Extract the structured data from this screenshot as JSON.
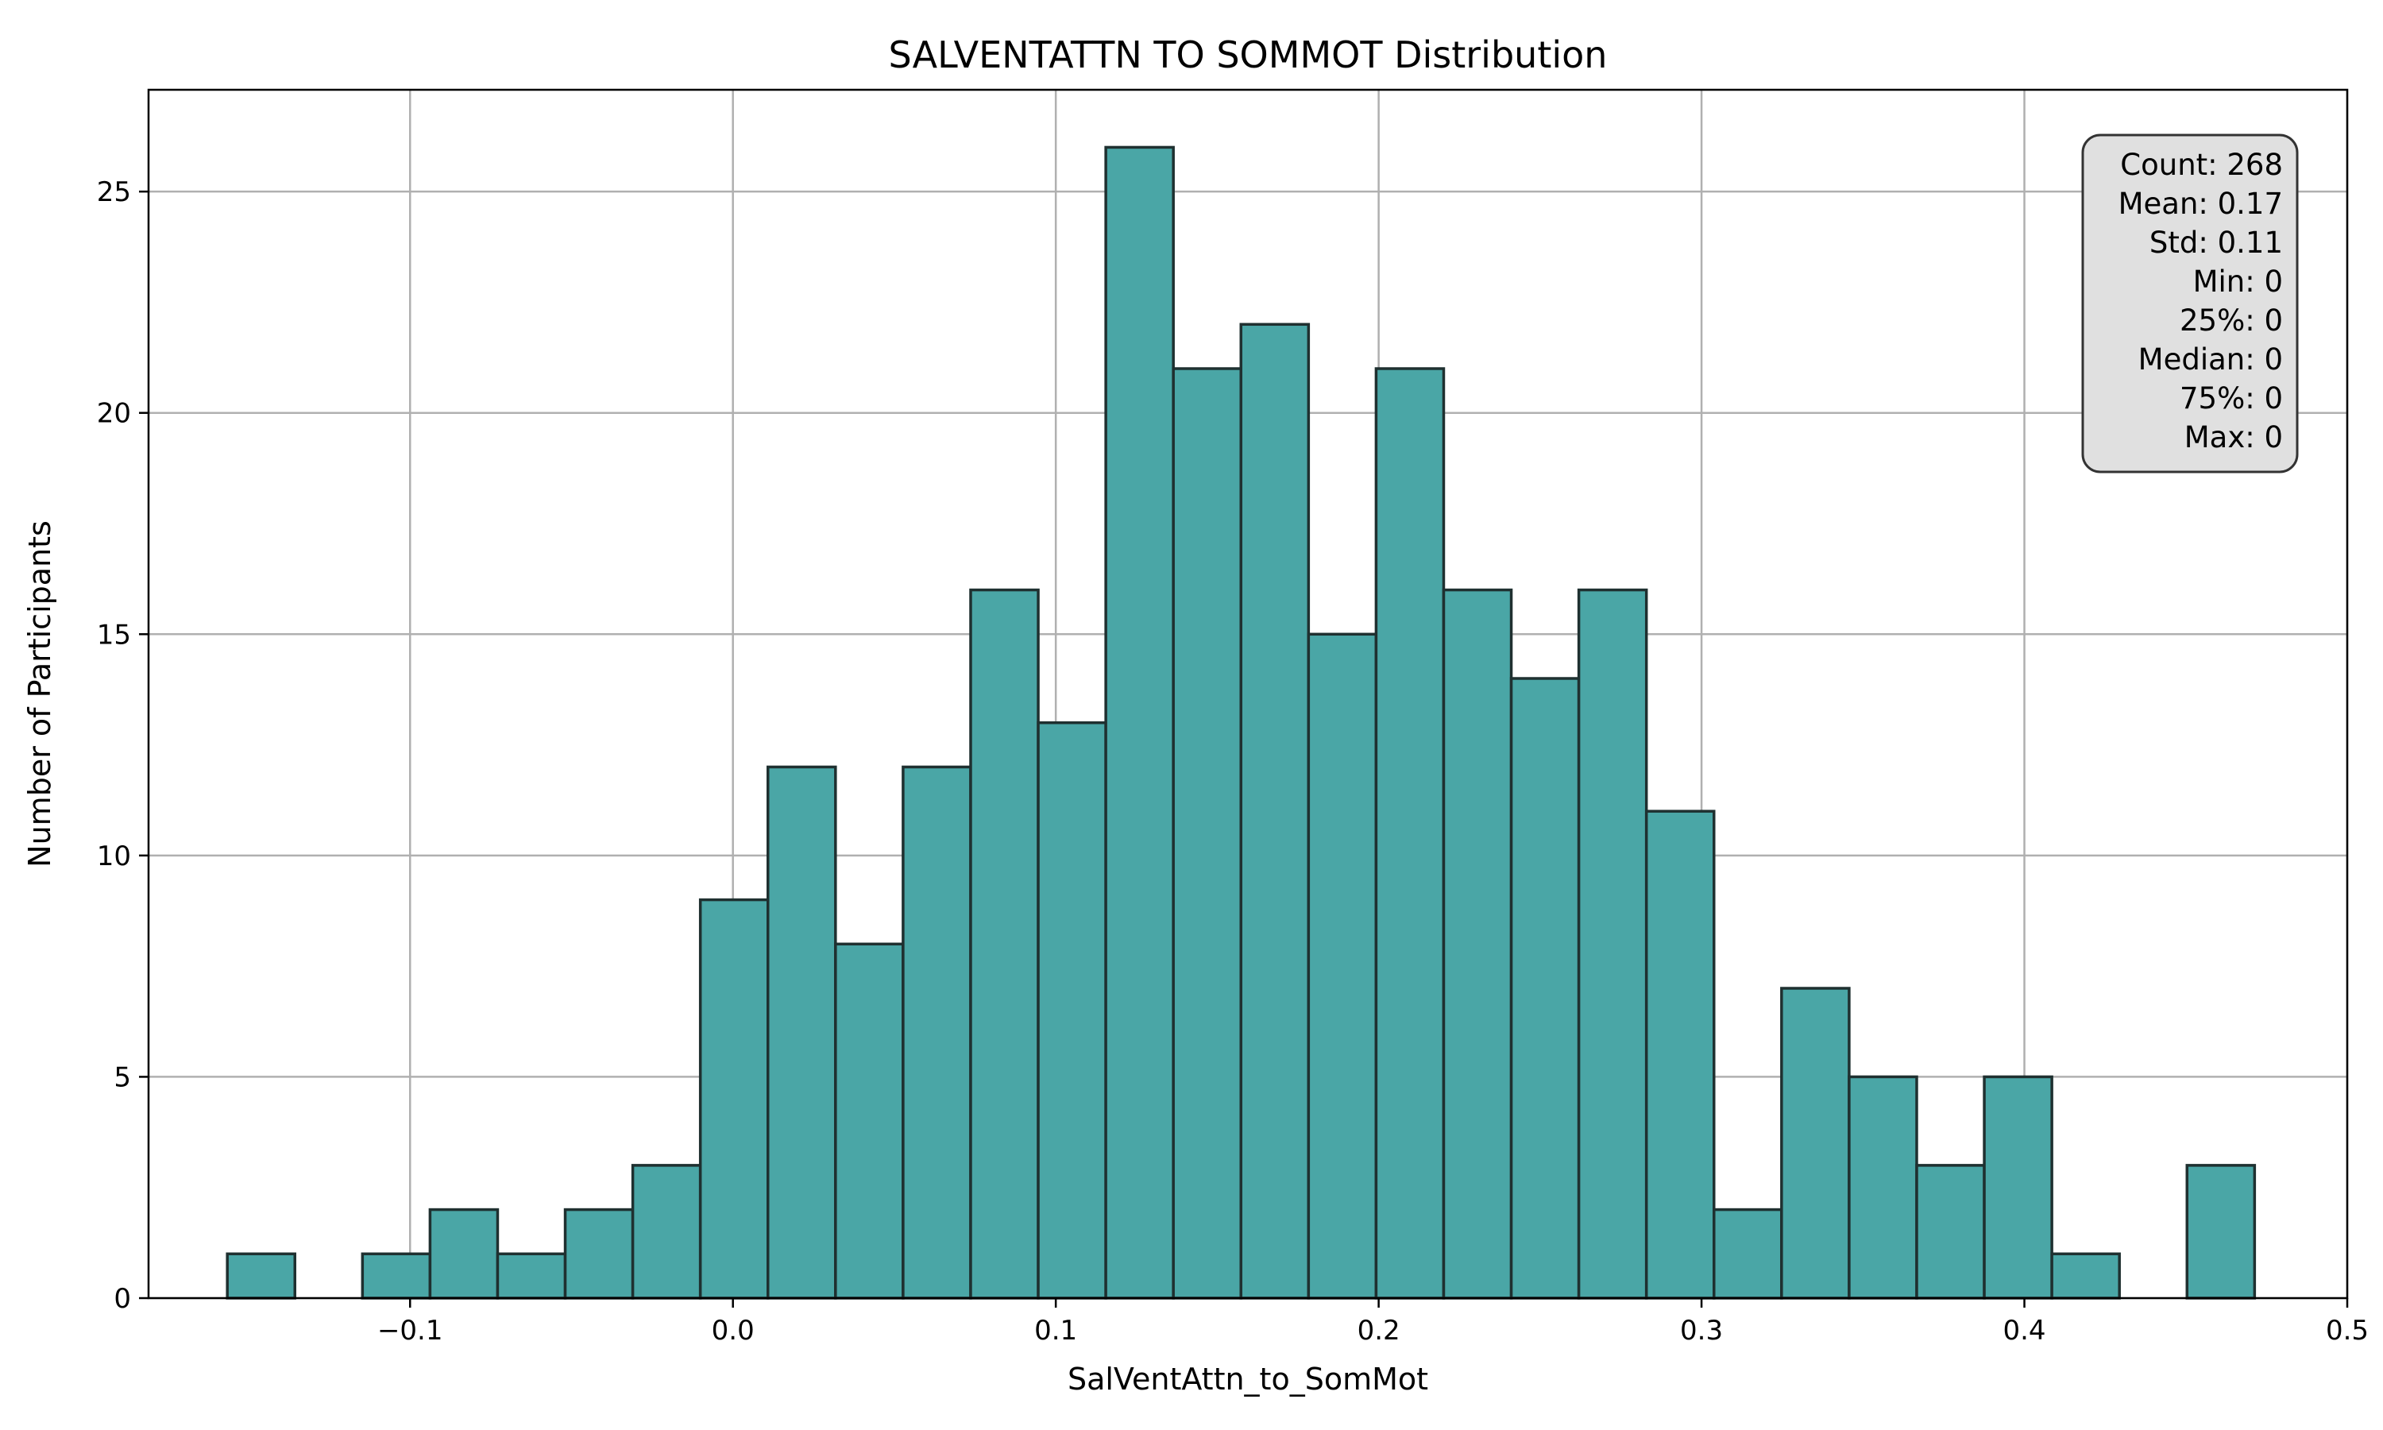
{
  "chart_data": {
    "type": "bar",
    "title": "SALVENTATTN TO SOMMOT Distribution",
    "xlabel": "SalVentAttn_to_SomMot",
    "ylabel": "Number of Participants",
    "xlim": [
      -0.181,
      0.5
    ],
    "ylim": [
      0,
      27.3
    ],
    "grid": true,
    "bar_color": "#4aa6a6",
    "edge_color": "#1f3030",
    "x_ticks": [
      {
        "value": -0.1,
        "label": "−0.1"
      },
      {
        "value": 0.0,
        "label": "0.0"
      },
      {
        "value": 0.1,
        "label": "0.1"
      },
      {
        "value": 0.2,
        "label": "0.2"
      },
      {
        "value": 0.3,
        "label": "0.3"
      },
      {
        "value": 0.4,
        "label": "0.4"
      },
      {
        "value": 0.5,
        "label": "0.5"
      }
    ],
    "y_ticks": [
      {
        "value": 0,
        "label": "0"
      },
      {
        "value": 5,
        "label": "5"
      },
      {
        "value": 10,
        "label": "10"
      },
      {
        "value": 15,
        "label": "15"
      },
      {
        "value": 20,
        "label": "20"
      },
      {
        "value": 25,
        "label": "25"
      }
    ],
    "bin_start": -0.1566,
    "bin_width": 0.02093,
    "counts": [
      1,
      0,
      1,
      2,
      1,
      2,
      3,
      9,
      12,
      8,
      12,
      16,
      13,
      26,
      21,
      22,
      15,
      21,
      16,
      14,
      16,
      11,
      2,
      7,
      5,
      3,
      5,
      1,
      0,
      3
    ],
    "stats_box": {
      "lines": [
        "Count: 268",
        "Mean: 0.17",
        "Std: 0.11",
        "Min: 0",
        "25%: 0",
        "Median: 0",
        "75%: 0",
        "Max: 0"
      ],
      "placement": "top-right",
      "background": "#e0e0e0"
    }
  }
}
